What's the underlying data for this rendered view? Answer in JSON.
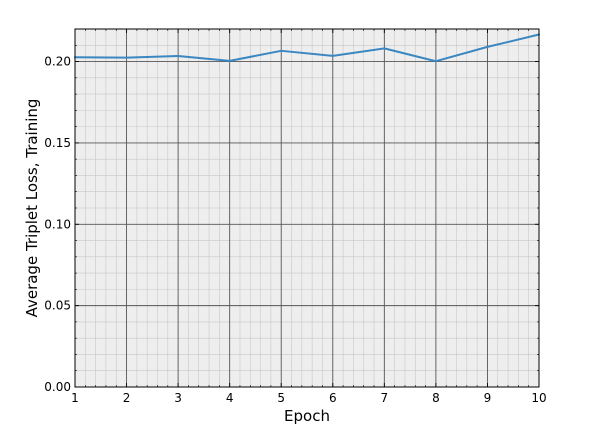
{
  "chart_data": {
    "type": "line",
    "title": "",
    "xlabel": "Epoch",
    "ylabel": "Average Triplet Loss, Training",
    "xlim": [
      1,
      10
    ],
    "ylim": [
      0.0,
      0.22
    ],
    "x_ticks": [
      "1",
      "2",
      "3",
      "4",
      "5",
      "6",
      "7",
      "8",
      "9",
      "10"
    ],
    "y_ticks": [
      "0.00",
      "0.05",
      "0.10",
      "0.15",
      "0.20"
    ],
    "grid": true,
    "minor_grid": true,
    "legend": "none",
    "background_color": "#eeeeee",
    "series": [
      {
        "color": "#3a87c2",
        "x": [
          1,
          2,
          3,
          4,
          5,
          6,
          7,
          8,
          9,
          10
        ],
        "y": [
          0.2026,
          0.2024,
          0.2034,
          0.2004,
          0.2066,
          0.2035,
          0.2081,
          0.2002,
          0.209,
          0.2166
        ]
      }
    ]
  }
}
